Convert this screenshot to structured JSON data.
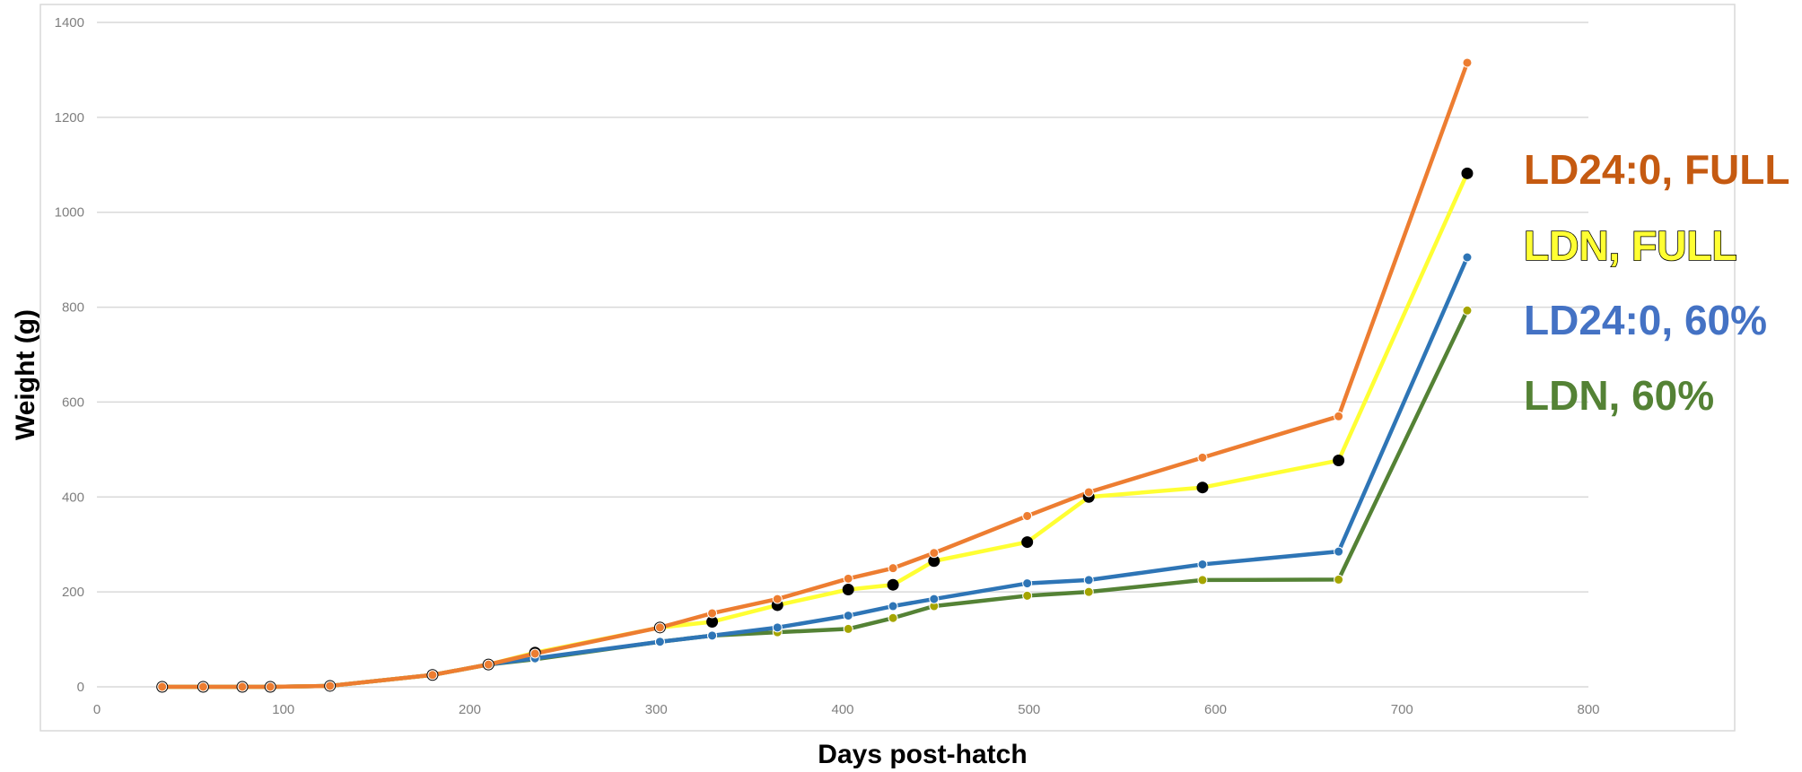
{
  "chart_data": {
    "type": "line",
    "title": "",
    "xlabel": "Days post-hatch",
    "ylabel": "Weight (g)",
    "xlim": [
      0,
      800
    ],
    "ylim": [
      0,
      1400
    ],
    "x_ticks": [
      0,
      100,
      200,
      300,
      400,
      500,
      600,
      700,
      800
    ],
    "y_ticks": [
      0,
      200,
      400,
      600,
      800,
      1000,
      1200,
      1400
    ],
    "grid": "horizontal",
    "legend_placement": "right",
    "series": [
      {
        "name": "LD24:0, FULL",
        "color": "#ED7D31",
        "marker_color": "#ED7D31",
        "x": [
          35,
          57,
          78,
          93,
          125,
          180,
          210,
          235,
          302,
          330,
          365,
          403,
          427,
          449,
          499,
          532,
          593,
          666,
          735
        ],
        "y": [
          0,
          0,
          0,
          0,
          2,
          25,
          47,
          70,
          125,
          155,
          185,
          228,
          250,
          282,
          360,
          410,
          483,
          570,
          1315
        ]
      },
      {
        "name": "LDN, FULL",
        "color": "#FFFF33",
        "marker_color": "#000000",
        "x": [
          35,
          57,
          78,
          93,
          125,
          180,
          210,
          235,
          302,
          330,
          365,
          403,
          427,
          449,
          499,
          532,
          593,
          666,
          735
        ],
        "y": [
          0,
          0,
          0,
          0,
          2,
          25,
          47,
          72,
          125,
          137,
          172,
          205,
          215,
          265,
          305,
          400,
          420,
          477,
          1082
        ]
      },
      {
        "name": "LD24:0, 60%",
        "color": "#2E75B6",
        "marker_color": "#2E75B6",
        "x": [
          35,
          57,
          78,
          93,
          125,
          180,
          210,
          235,
          302,
          330,
          365,
          403,
          427,
          449,
          499,
          532,
          593,
          666,
          735
        ],
        "y": [
          0,
          0,
          0,
          0,
          2,
          25,
          47,
          60,
          95,
          108,
          125,
          150,
          170,
          185,
          218,
          225,
          258,
          285,
          905
        ]
      },
      {
        "name": "LDN, 60%",
        "color": "#548235",
        "marker_color": "#A5A500",
        "x": [
          35,
          57,
          78,
          93,
          125,
          180,
          210,
          235,
          302,
          330,
          365,
          403,
          427,
          449,
          499,
          532,
          593,
          666,
          735
        ],
        "y": [
          0,
          0,
          0,
          0,
          2,
          25,
          47,
          58,
          95,
          108,
          115,
          122,
          145,
          170,
          192,
          200,
          225,
          226,
          793
        ]
      }
    ],
    "legend_text_colors": [
      "#C55A11",
      "#FFFF33",
      "#4472C4",
      "#548235"
    ],
    "legend_outline": {
      "LDN, FULL": "#000000"
    }
  }
}
